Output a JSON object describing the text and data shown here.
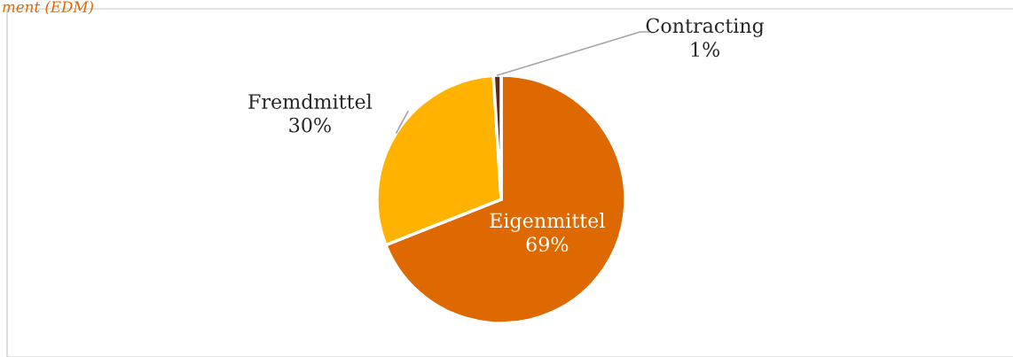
{
  "chart_data": {
    "type": "pie",
    "title": "ment (EDM)",
    "categories": [
      "Eigenmittel",
      "Fremdmittel",
      "Contracting"
    ],
    "values": [
      69,
      30,
      1
    ],
    "colors": [
      "#dd6900",
      "#ffb300",
      "#5c2a1e"
    ],
    "value_labels": [
      "69%",
      "30%",
      "1%"
    ],
    "legend": false
  }
}
